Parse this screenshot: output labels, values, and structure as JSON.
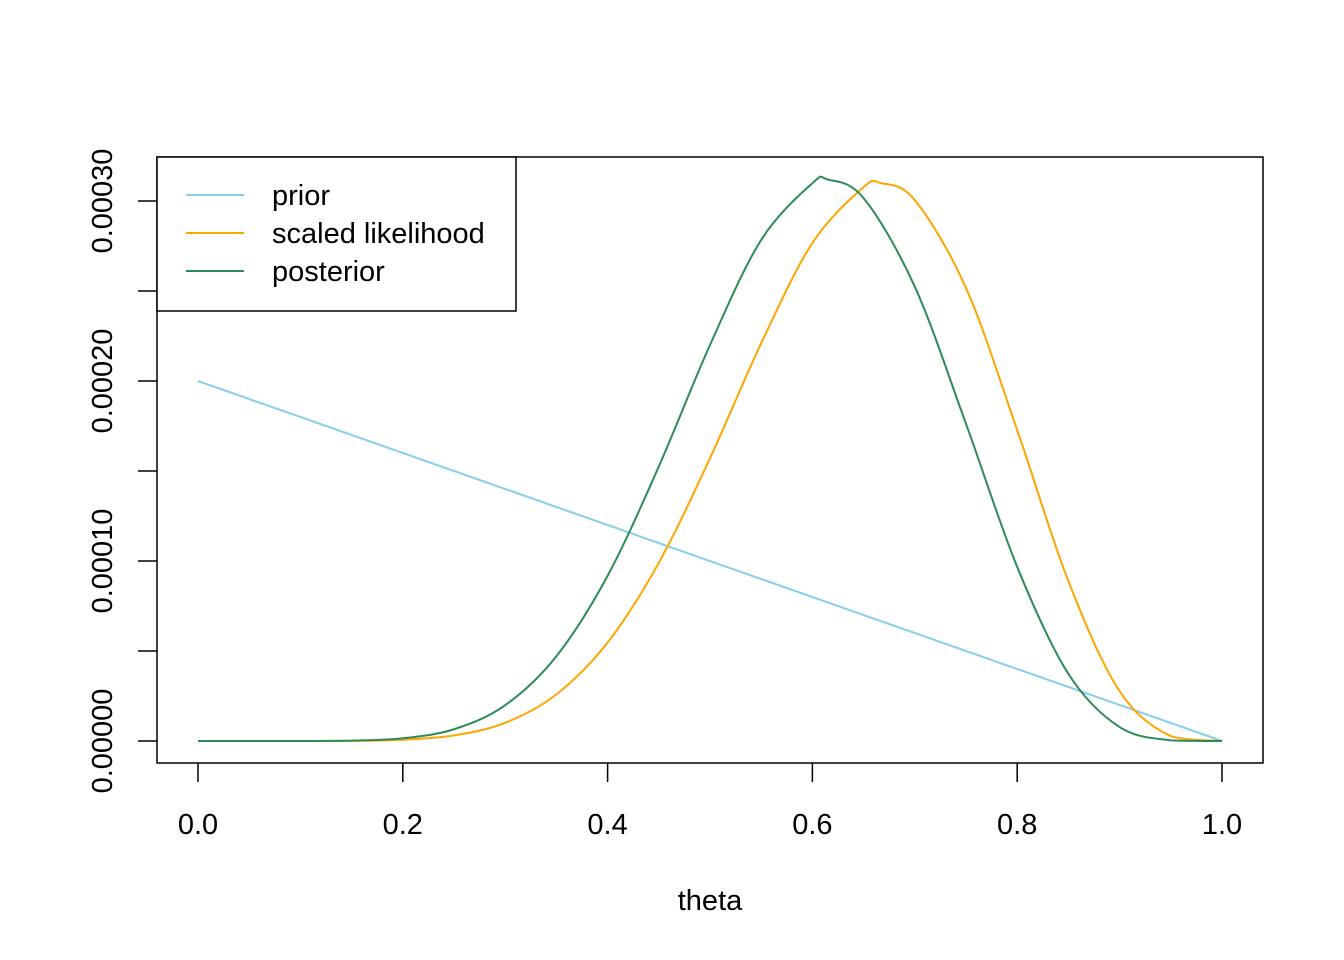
{
  "chart_data": {
    "type": "line",
    "title": "",
    "xlabel": "theta",
    "ylabel": "",
    "xlim": [
      0,
      1
    ],
    "ylim": [
      0,
      0.00031
    ],
    "grid": false,
    "legend_placement": "top-left",
    "x_ticks": [
      {
        "value": 0.0,
        "label": "0.0"
      },
      {
        "value": 0.2,
        "label": "0.2"
      },
      {
        "value": 0.4,
        "label": "0.4"
      },
      {
        "value": 0.6,
        "label": "0.6"
      },
      {
        "value": 0.8,
        "label": "0.8"
      },
      {
        "value": 1.0,
        "label": "1.0"
      }
    ],
    "y_ticks": [
      {
        "value": 0.0,
        "label": "0.00000"
      },
      {
        "value": 5e-05,
        "label": ""
      },
      {
        "value": 0.0001,
        "label": "0.00010"
      },
      {
        "value": 0.00015,
        "label": ""
      },
      {
        "value": 0.0002,
        "label": "0.00020"
      },
      {
        "value": 0.00025,
        "label": ""
      },
      {
        "value": 0.0003,
        "label": "0.00030"
      }
    ],
    "series": [
      {
        "name": "prior",
        "color": "#87CEEB",
        "x": [
          0,
          1
        ],
        "y": [
          0.0002,
          0
        ]
      },
      {
        "name": "scaled likelihood",
        "color": "#FFA500",
        "x": [
          0,
          0.05,
          0.1,
          0.15,
          0.2,
          0.25,
          0.3,
          0.35,
          0.4,
          0.45,
          0.5,
          0.55,
          0.6,
          0.65,
          0.667,
          0.7,
          0.75,
          0.8,
          0.85,
          0.9,
          0.95,
          1
        ],
        "y": [
          0,
          0,
          4.2e-09,
          8.6e-08,
          6.7e-07,
          3.1e-06,
          1.01e-05,
          2.59e-05,
          5.47e-05,
          9.9e-05,
          0.0001571,
          0.000221,
          0.0002767,
          0.0003077,
          0.0003099,
          0.0003005,
          0.0002517,
          0.0001727,
          8.88e-05,
          2.77e-05,
          2.67e-06,
          0
        ]
      },
      {
        "name": "posterior",
        "color": "#2E8B57",
        "x": [
          0,
          0.05,
          0.1,
          0.15,
          0.2,
          0.25,
          0.3,
          0.35,
          0.4,
          0.45,
          0.5,
          0.55,
          0.6,
          0.615,
          0.65,
          0.7,
          0.75,
          0.8,
          0.85,
          0.9,
          0.95,
          1
        ],
        "y": [
          0,
          0,
          3.8e-09,
          2e-07,
          1.51e-06,
          6.52e-06,
          1.99e-05,
          4.71e-05,
          9.18e-05,
          0.0001525,
          0.00022,
          0.0002784,
          0.0003099,
          0.0003119,
          0.0003016,
          0.0002524,
          0.0001762,
          9.67e-05,
          3.73e-05,
          7.76e-06,
          3.7e-07,
          0
        ]
      }
    ]
  }
}
